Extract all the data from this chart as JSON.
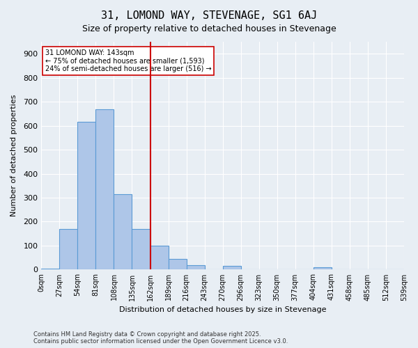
{
  "title1": "31, LOMOND WAY, STEVENAGE, SG1 6AJ",
  "title2": "Size of property relative to detached houses in Stevenage",
  "xlabel": "Distribution of detached houses by size in Stevenage",
  "ylabel": "Number of detached properties",
  "bin_labels": [
    "0sqm",
    "27sqm",
    "54sqm",
    "81sqm",
    "108sqm",
    "135sqm",
    "162sqm",
    "189sqm",
    "216sqm",
    "243sqm",
    "270sqm",
    "296sqm",
    "323sqm",
    "350sqm",
    "377sqm",
    "404sqm",
    "431sqm",
    "458sqm",
    "485sqm",
    "512sqm",
    "539sqm"
  ],
  "bar_values": [
    5,
    170,
    615,
    670,
    315,
    170,
    100,
    45,
    20,
    0,
    15,
    0,
    0,
    0,
    0,
    10,
    0,
    0,
    0,
    0
  ],
  "bar_color": "#aec6e8",
  "bar_edge_color": "#5b9bd5",
  "vline_x": 6,
  "vline_color": "#cc0000",
  "annotation_text": "31 LOMOND WAY: 143sqm\n← 75% of detached houses are smaller (1,593)\n24% of semi-detached houses are larger (516) →",
  "annotation_box_color": "#ffffff",
  "annotation_box_edge": "#cc0000",
  "ylim": [
    0,
    950
  ],
  "yticks": [
    0,
    100,
    200,
    300,
    400,
    500,
    600,
    700,
    800,
    900
  ],
  "background_color": "#e8eef4",
  "grid_color": "#ffffff",
  "footnote": "Contains HM Land Registry data © Crown copyright and database right 2025.\nContains public sector information licensed under the Open Government Licence v3.0."
}
